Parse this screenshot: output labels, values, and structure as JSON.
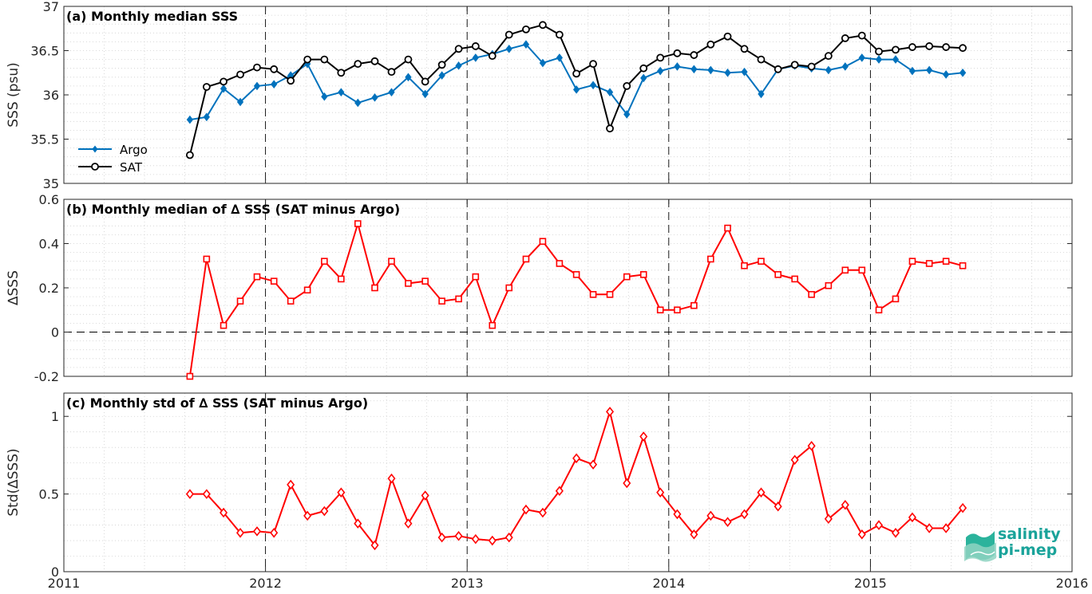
{
  "chart_data": [
    {
      "type": "line",
      "title": "(a) Monthly median SSS",
      "ylabel": "SSS (psu)",
      "xlim": [
        2011,
        2016
      ],
      "ylim": [
        35,
        37
      ],
      "yticks": [
        "35",
        "35.5",
        "36",
        "36.5",
        "37"
      ],
      "grid": true,
      "legend_position": "bottom-left",
      "series": [
        {
          "name": "Argo",
          "color": "#0072bd",
          "marker": "diamond-filled",
          "x": [
            2011.625,
            2011.708,
            2011.792,
            2011.875,
            2011.958,
            2012.042,
            2012.125,
            2012.208,
            2012.292,
            2012.375,
            2012.458,
            2012.542,
            2012.625,
            2012.708,
            2012.792,
            2012.875,
            2012.958,
            2013.042,
            2013.125,
            2013.208,
            2013.292,
            2013.375,
            2013.458,
            2013.542,
            2013.625,
            2013.708,
            2013.792,
            2013.875,
            2013.958,
            2014.042,
            2014.125,
            2014.208,
            2014.292,
            2014.375,
            2014.458,
            2014.542,
            2014.625,
            2014.708,
            2014.792,
            2014.875,
            2014.958,
            2015.042,
            2015.125,
            2015.208,
            2015.292,
            2015.375,
            2015.458
          ],
          "y": [
            35.72,
            35.75,
            36.07,
            35.92,
            36.1,
            36.12,
            36.22,
            36.35,
            35.98,
            36.03,
            35.91,
            35.97,
            36.03,
            36.2,
            36.01,
            36.22,
            36.33,
            36.42,
            36.46,
            36.52,
            36.57,
            36.36,
            36.42,
            36.06,
            36.11,
            36.03,
            35.78,
            36.19,
            36.27,
            36.32,
            36.29,
            36.28,
            36.25,
            36.26,
            36.01,
            36.29,
            36.33,
            36.3,
            36.28,
            36.32,
            36.42,
            36.4,
            36.4,
            36.27,
            36.28,
            36.23,
            36.25
          ]
        },
        {
          "name": "SAT",
          "color": "#000000",
          "marker": "circle-open",
          "x": [
            2011.625,
            2011.708,
            2011.792,
            2011.875,
            2011.958,
            2012.042,
            2012.125,
            2012.208,
            2012.292,
            2012.375,
            2012.458,
            2012.542,
            2012.625,
            2012.708,
            2012.792,
            2012.875,
            2012.958,
            2013.042,
            2013.125,
            2013.208,
            2013.292,
            2013.375,
            2013.458,
            2013.542,
            2013.625,
            2013.708,
            2013.792,
            2013.875,
            2013.958,
            2014.042,
            2014.125,
            2014.208,
            2014.292,
            2014.375,
            2014.458,
            2014.542,
            2014.625,
            2014.708,
            2014.792,
            2014.875,
            2014.958,
            2015.042,
            2015.125,
            2015.208,
            2015.292,
            2015.375,
            2015.458
          ],
          "y": [
            35.32,
            36.09,
            36.15,
            36.23,
            36.31,
            36.29,
            36.16,
            36.4,
            36.4,
            36.25,
            36.35,
            36.38,
            36.26,
            36.4,
            36.15,
            36.34,
            36.52,
            36.55,
            36.44,
            36.68,
            36.74,
            36.79,
            36.68,
            36.24,
            36.35,
            35.62,
            36.1,
            36.3,
            36.42,
            36.47,
            36.45,
            36.57,
            36.66,
            36.52,
            36.4,
            36.29,
            36.34,
            36.32,
            36.44,
            36.64,
            36.67,
            36.49,
            36.51,
            36.54,
            36.55,
            36.54,
            36.53
          ]
        }
      ]
    },
    {
      "type": "line",
      "title": "(b) Monthly median of ∆ SSS (SAT minus Argo)",
      "ylabel": "∆SSS",
      "xlim": [
        2011,
        2016
      ],
      "ylim": [
        -0.2,
        0.6
      ],
      "yticks": [
        "-0.2",
        "0",
        "0.2",
        "0.4",
        "0.6"
      ],
      "grid": true,
      "zero_line": true,
      "series": [
        {
          "color": "#ff0000",
          "marker": "square-open",
          "x": [
            2011.625,
            2011.708,
            2011.792,
            2011.875,
            2011.958,
            2012.042,
            2012.125,
            2012.208,
            2012.292,
            2012.375,
            2012.458,
            2012.542,
            2012.625,
            2012.708,
            2012.792,
            2012.875,
            2012.958,
            2013.042,
            2013.125,
            2013.208,
            2013.292,
            2013.375,
            2013.458,
            2013.542,
            2013.625,
            2013.708,
            2013.792,
            2013.875,
            2013.958,
            2014.042,
            2014.125,
            2014.208,
            2014.292,
            2014.375,
            2014.458,
            2014.542,
            2014.625,
            2014.708,
            2014.792,
            2014.875,
            2014.958,
            2015.042,
            2015.125,
            2015.208,
            2015.292,
            2015.375,
            2015.458
          ],
          "y": [
            -0.2,
            0.33,
            0.03,
            0.14,
            0.25,
            0.23,
            0.14,
            0.19,
            0.32,
            0.24,
            0.49,
            0.2,
            0.32,
            0.22,
            0.23,
            0.14,
            0.15,
            0.25,
            0.03,
            0.2,
            0.33,
            0.41,
            0.31,
            0.26,
            0.17,
            0.17,
            0.25,
            0.26,
            0.1,
            0.1,
            0.12,
            0.33,
            0.47,
            0.3,
            0.32,
            0.26,
            0.24,
            0.17,
            0.21,
            0.28,
            0.28,
            0.1,
            0.15,
            0.32,
            0.31,
            0.32,
            0.3
          ]
        }
      ]
    },
    {
      "type": "line",
      "title": "(c) Monthly std of ∆ SSS (SAT minus Argo)",
      "ylabel": "Std(∆SSS)",
      "xlim": [
        2011,
        2016
      ],
      "ylim": [
        0,
        1.15
      ],
      "yticks": [
        "0",
        "0.5",
        "1"
      ],
      "xticks": [
        "2011",
        "2012",
        "2013",
        "2014",
        "2015",
        "2016"
      ],
      "grid": true,
      "series": [
        {
          "color": "#ff0000",
          "marker": "diamond-open",
          "x": [
            2011.625,
            2011.708,
            2011.792,
            2011.875,
            2011.958,
            2012.042,
            2012.125,
            2012.208,
            2012.292,
            2012.375,
            2012.458,
            2012.542,
            2012.625,
            2012.708,
            2012.792,
            2012.875,
            2012.958,
            2013.042,
            2013.125,
            2013.208,
            2013.292,
            2013.375,
            2013.458,
            2013.542,
            2013.625,
            2013.708,
            2013.792,
            2013.875,
            2013.958,
            2014.042,
            2014.125,
            2014.208,
            2014.292,
            2014.375,
            2014.458,
            2014.542,
            2014.625,
            2014.708,
            2014.792,
            2014.875,
            2014.958,
            2015.042,
            2015.125,
            2015.208,
            2015.292,
            2015.375,
            2015.458
          ],
          "y": [
            0.5,
            0.5,
            0.38,
            0.25,
            0.26,
            0.25,
            0.56,
            0.36,
            0.39,
            0.51,
            0.31,
            0.17,
            0.6,
            0.31,
            0.49,
            0.22,
            0.23,
            0.21,
            0.2,
            0.22,
            0.4,
            0.38,
            0.52,
            0.73,
            0.69,
            1.03,
            0.57,
            0.87,
            0.51,
            0.37,
            0.24,
            0.36,
            0.32,
            0.37,
            0.51,
            0.42,
            0.72,
            0.81,
            0.34,
            0.43,
            0.24,
            0.3,
            0.25,
            0.35,
            0.28,
            0.28,
            0.41
          ]
        }
      ]
    }
  ],
  "logo": {
    "line1": "salinity",
    "line2": "pi-mep"
  }
}
